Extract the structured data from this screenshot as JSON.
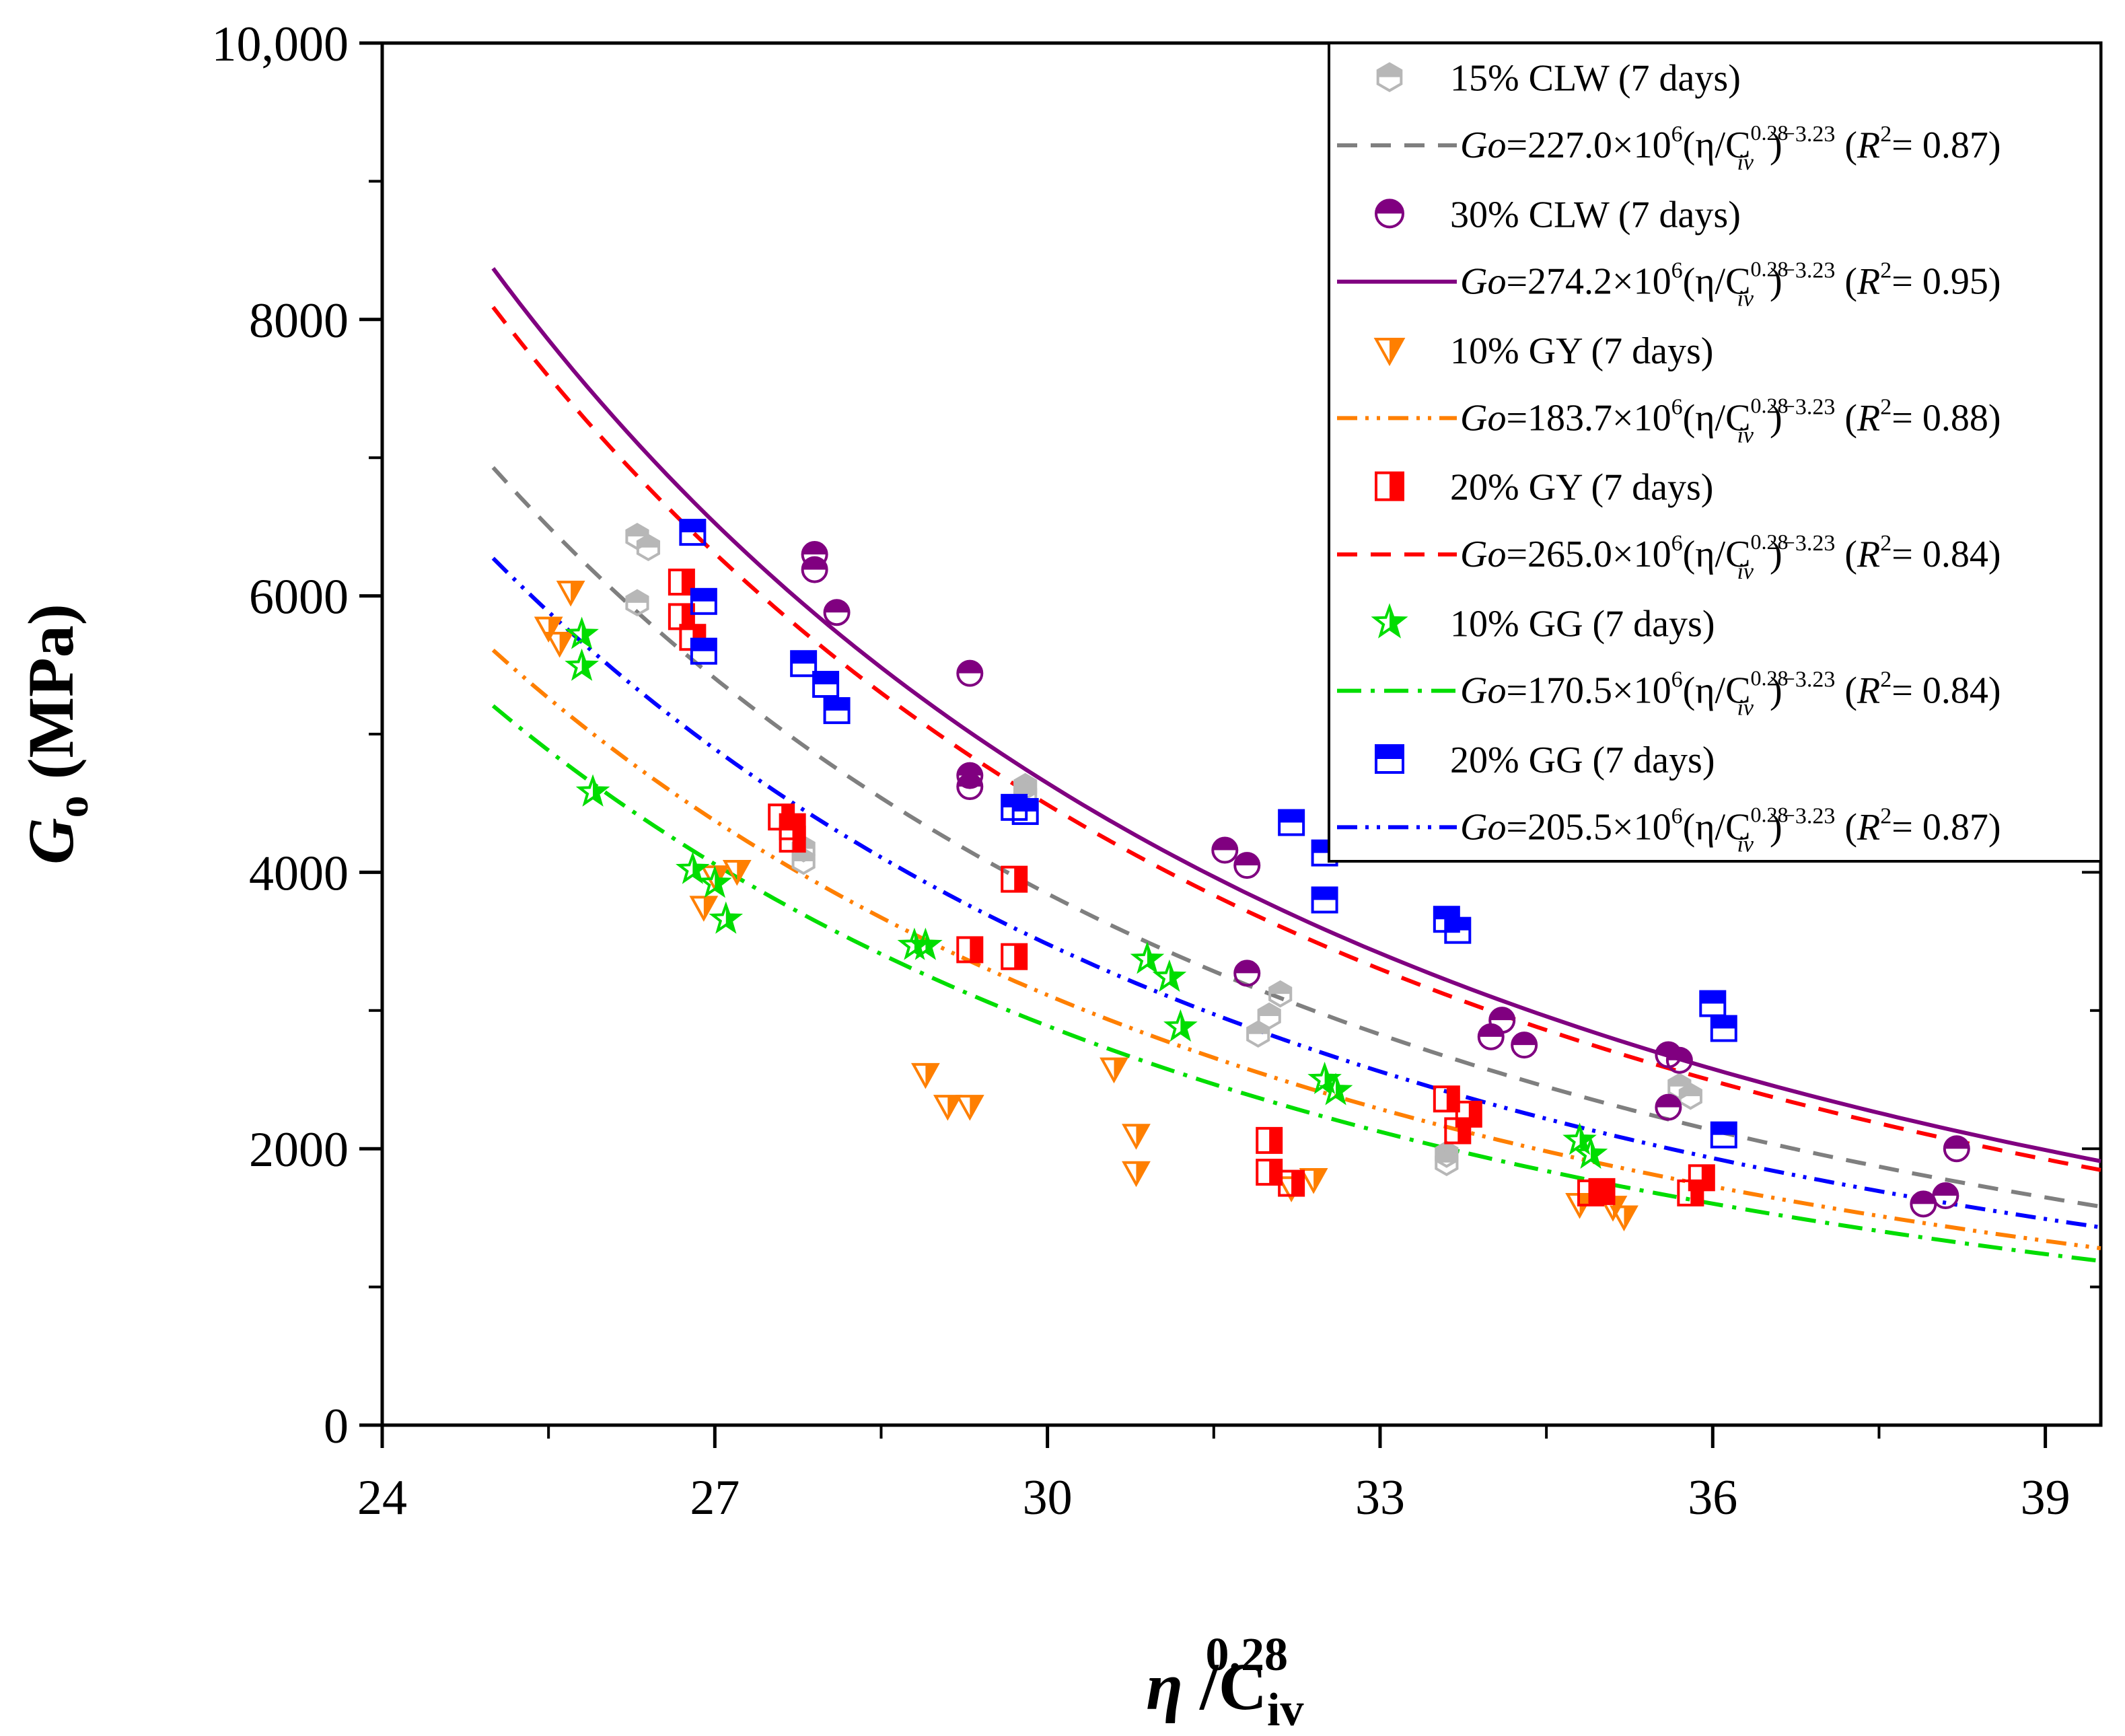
{
  "chart_data": {
    "type": "scatter",
    "xlabel": {
      "main": "η",
      "sep": " /C",
      "sub": "iv",
      "sup": "0.28"
    },
    "ylabel": {
      "main": "G",
      "sub": "o",
      "unit": " (MPa)"
    },
    "xlim": [
      24,
      39.5
    ],
    "ylim": [
      0,
      10000
    ],
    "xticks": [
      "24",
      "27",
      "30",
      "33",
      "36",
      "39"
    ],
    "xtick_values": [
      24,
      27,
      30,
      33,
      36,
      39
    ],
    "yticks": [
      "0",
      "2000",
      "4000",
      "6000",
      "8000",
      "10,000"
    ],
    "ytick_values": [
      0,
      2000,
      4000,
      6000,
      8000,
      10000
    ],
    "legend_position": "top-right",
    "grid": false,
    "fit_exponent": -3.23,
    "fit_x_range": [
      25,
      39.5
    ],
    "series": [
      {
        "name": "15% CLW (7 days)",
        "marker": "hexagon-half",
        "color": "#b7b7b7",
        "points": [
          [
            26.3,
            6430
          ],
          [
            26.4,
            6350
          ],
          [
            26.3,
            5950
          ],
          [
            27.8,
            4170
          ],
          [
            27.8,
            4080
          ],
          [
            29.8,
            4620
          ],
          [
            29.8,
            4560
          ],
          [
            32.0,
            2960
          ],
          [
            31.9,
            2830
          ],
          [
            32.1,
            3120
          ],
          [
            33.6,
            1960
          ],
          [
            33.6,
            1900
          ],
          [
            35.7,
            2450
          ],
          [
            35.8,
            2380
          ]
        ],
        "fit": {
          "label_prefix": "Go",
          "label_main": "=227.0×10",
          "label_exp": "6",
          "label_tail": "(η/C",
          "label_sub": "iv",
          "label_sup": "0.28",
          "label_close": ")",
          "label_pow": "−3.23",
          "label_r2_pre": " (",
          "label_r2": "R",
          "label_r2_exp": "2",
          "label_r2_post": "= 0.87)",
          "coefficient": 227000000.0,
          "style": "dash",
          "color": "#7f7f7f"
        }
      },
      {
        "name": "30% CLW (7 days)",
        "marker": "circle-half",
        "color": "#800080",
        "points": [
          [
            27.9,
            6300
          ],
          [
            27.9,
            6190
          ],
          [
            28.1,
            5880
          ],
          [
            29.3,
            5440
          ],
          [
            29.3,
            4700
          ],
          [
            29.3,
            4620
          ],
          [
            31.6,
            4160
          ],
          [
            31.8,
            4050
          ],
          [
            31.8,
            3270
          ],
          [
            34.1,
            2930
          ],
          [
            34.0,
            2810
          ],
          [
            34.3,
            2750
          ],
          [
            35.6,
            2680
          ],
          [
            35.7,
            2640
          ],
          [
            35.6,
            2300
          ],
          [
            37.9,
            1600
          ],
          [
            38.1,
            1660
          ],
          [
            38.2,
            2000
          ]
        ],
        "fit": {
          "label_prefix": "Go",
          "label_main": "=274.2×10",
          "label_exp": "6",
          "label_tail": "(η/C",
          "label_sub": "iv",
          "label_sup": "0.28",
          "label_close": ")",
          "label_pow": "−3.23",
          "label_r2_pre": " (",
          "label_r2": "R",
          "label_r2_exp": "2",
          "label_r2_post": "= 0.95)",
          "coefficient": 274200000.0,
          "style": "solid",
          "color": "#800080"
        }
      },
      {
        "name": "10% GY (7 days)",
        "marker": "triangle-down-half",
        "color": "#ff7f00",
        "points": [
          [
            25.7,
            6030
          ],
          [
            25.5,
            5770
          ],
          [
            25.6,
            5660
          ],
          [
            27.0,
            3970
          ],
          [
            27.2,
            4010
          ],
          [
            26.9,
            3750
          ],
          [
            28.9,
            2540
          ],
          [
            29.1,
            2310
          ],
          [
            29.3,
            2310
          ],
          [
            30.6,
            2580
          ],
          [
            30.8,
            2100
          ],
          [
            30.8,
            1830
          ],
          [
            32.2,
            1720
          ],
          [
            32.4,
            1780
          ],
          [
            34.8,
            1600
          ],
          [
            35.1,
            1580
          ],
          [
            35.2,
            1510
          ]
        ],
        "fit": {
          "label_prefix": "Go",
          "label_main": "=183.7×10",
          "label_exp": "6",
          "label_tail": "(η/C",
          "label_sub": "iv",
          "label_sup": "0.28",
          "label_close": ")",
          "label_pow": "−3.23",
          "label_r2_pre": " (",
          "label_r2": "R",
          "label_r2_exp": "2",
          "label_r2_post": "= 0.88)",
          "coefficient": 183700000.0,
          "style": "dashdotdot",
          "color": "#ff7f00"
        }
      },
      {
        "name": "20% GY (7 days)",
        "marker": "square-left-half",
        "color": "#ff0000",
        "points": [
          [
            26.7,
            6100
          ],
          [
            26.7,
            5850
          ],
          [
            26.8,
            5700
          ],
          [
            27.6,
            4400
          ],
          [
            27.7,
            4330
          ],
          [
            27.7,
            4240
          ],
          [
            29.3,
            3440
          ],
          [
            29.7,
            3390
          ],
          [
            29.7,
            3950
          ],
          [
            32.0,
            2060
          ],
          [
            32.0,
            1830
          ],
          [
            32.2,
            1750
          ],
          [
            33.6,
            2360
          ],
          [
            33.8,
            2250
          ],
          [
            33.7,
            2130
          ],
          [
            34.9,
            1680
          ],
          [
            35.0,
            1690
          ],
          [
            35.9,
            1790
          ],
          [
            35.8,
            1680
          ]
        ],
        "fit": {
          "label_prefix": "Go",
          "label_main": "=265.0×10",
          "label_exp": "6",
          "label_tail": "(η/C",
          "label_sub": "iv",
          "label_sup": "0.28",
          "label_close": ")",
          "label_pow": "−3.23",
          "label_r2_pre": " (",
          "label_r2": "R",
          "label_r2_exp": "2",
          "label_r2_post": "= 0.84)",
          "coefficient": 265000000.0,
          "style": "dash",
          "color": "#ff0000"
        }
      },
      {
        "name": "10% GG (7 days)",
        "marker": "star-half",
        "color": "#00dd00",
        "points": [
          [
            25.8,
            5720
          ],
          [
            25.8,
            5490
          ],
          [
            25.9,
            4580
          ],
          [
            26.8,
            4020
          ],
          [
            27.0,
            3920
          ],
          [
            27.1,
            3660
          ],
          [
            28.9,
            3470
          ],
          [
            28.8,
            3470
          ],
          [
            30.9,
            3370
          ],
          [
            31.1,
            3240
          ],
          [
            31.2,
            2880
          ],
          [
            32.5,
            2500
          ],
          [
            32.6,
            2420
          ],
          [
            34.8,
            2060
          ],
          [
            34.9,
            1960
          ]
        ],
        "fit": {
          "label_prefix": "Go",
          "label_main": "=170.5×10",
          "label_exp": "6",
          "label_tail": "(η/C",
          "label_sub": "iv",
          "label_sup": "0.28",
          "label_close": ")",
          "label_pow": "−3.23",
          "label_r2_pre": " (",
          "label_r2": "R",
          "label_r2_exp": "2",
          "label_r2_post": "= 0.84)",
          "coefficient": 170500000.0,
          "style": "dashdot",
          "color": "#00dd00"
        }
      },
      {
        "name": "20% GG (7 days)",
        "marker": "square-top-half",
        "color": "#0000ff",
        "points": [
          [
            26.8,
            6460
          ],
          [
            26.9,
            5960
          ],
          [
            26.9,
            5600
          ],
          [
            27.8,
            5510
          ],
          [
            28.0,
            5360
          ],
          [
            28.1,
            5170
          ],
          [
            29.7,
            4470
          ],
          [
            29.8,
            4440
          ],
          [
            32.2,
            4360
          ],
          [
            32.5,
            4140
          ],
          [
            32.5,
            3800
          ],
          [
            33.6,
            3660
          ],
          [
            33.7,
            3580
          ],
          [
            36.0,
            3050
          ],
          [
            36.1,
            2870
          ],
          [
            36.1,
            2100
          ]
        ],
        "fit": {
          "label_prefix": "Go",
          "label_main": "=205.5×10",
          "label_exp": "6",
          "label_tail": "(η/C",
          "label_sub": "iv",
          "label_sup": "0.28",
          "label_close": ")",
          "label_pow": "−3.23",
          "label_r2_pre": " (",
          "label_r2": "R",
          "label_r2_exp": "2",
          "label_r2_post": "= 0.87)",
          "coefficient": 205500000.0,
          "style": "dashdotdot",
          "color": "#0000ff"
        }
      }
    ]
  }
}
